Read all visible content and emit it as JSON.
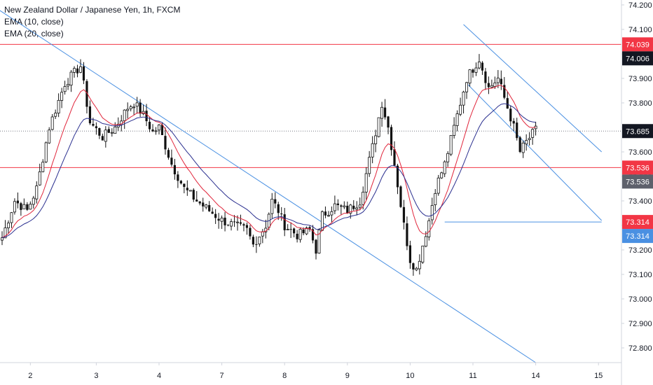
{
  "legend": {
    "title": "New Zealand Dollar / Japanese Yen, 1h, FXCM",
    "ema10": "EMA (10, close)",
    "ema20": "EMA (20, close)"
  },
  "colors": {
    "candle": "#111111",
    "ema10": "#e0243a",
    "ema20": "#2a2f8f",
    "level": "#f23645",
    "trend": "#4a90e2",
    "price": "#787b86",
    "axis": "#d1d4dc",
    "badge_red": "#f23645",
    "badge_black": "#131722",
    "badge_gray": "#5d606b",
    "badge_blue": "#4a90e2"
  },
  "chart_data": {
    "type": "candlestick",
    "title": "New Zealand Dollar / Japanese Yen, 1h, FXCM",
    "x_ticks": [
      "2",
      "3",
      "4",
      "7",
      "8",
      "9",
      "10",
      "11",
      "14",
      "15"
    ],
    "y_ticks": [
      "74.200",
      "74.100",
      "74.000",
      "73.900",
      "73.800",
      "73.700",
      "73.600",
      "73.500",
      "73.400",
      "73.300",
      "73.200",
      "73.100",
      "73.000",
      "72.900",
      "72.800"
    ],
    "ylim": [
      72.76,
      74.21
    ],
    "last_price": 73.685,
    "horizontal_levels": [
      74.039,
      73.536,
      73.314
    ],
    "price_badges": [
      {
        "label": "74.039",
        "value": 74.039,
        "style": "red"
      },
      {
        "label": "74.006",
        "value": 74.006,
        "style": "black"
      },
      {
        "label": "73.685",
        "value": 73.685,
        "style": "black"
      },
      {
        "label": "73.536",
        "value": 73.536,
        "style": "red"
      },
      {
        "label": "73.536",
        "value": 73.536,
        "style": "gray"
      },
      {
        "label": "73.314",
        "value": 73.314,
        "style": "red"
      },
      {
        "label": "73.314",
        "value": 73.314,
        "style": "blue"
      }
    ],
    "close_path": [
      [
        0,
        73.25
      ],
      [
        4,
        73.4
      ],
      [
        8,
        73.36
      ],
      [
        11,
        73.45
      ],
      [
        15,
        73.7
      ],
      [
        20,
        73.88
      ],
      [
        25,
        73.95
      ],
      [
        28,
        73.72
      ],
      [
        32,
        73.66
      ],
      [
        36,
        73.7
      ],
      [
        40,
        73.78
      ],
      [
        42,
        73.8
      ],
      [
        45,
        73.75
      ],
      [
        48,
        73.68
      ],
      [
        50,
        73.7
      ],
      [
        54,
        73.55
      ],
      [
        58,
        73.45
      ],
      [
        62,
        73.4
      ],
      [
        66,
        73.36
      ],
      [
        70,
        73.32
      ],
      [
        74,
        73.3
      ],
      [
        78,
        73.28
      ],
      [
        80,
        73.22
      ],
      [
        84,
        73.3
      ],
      [
        86,
        73.4
      ],
      [
        88,
        73.36
      ],
      [
        90,
        73.3
      ],
      [
        94,
        73.26
      ],
      [
        98,
        73.28
      ],
      [
        100,
        73.2
      ],
      [
        102,
        73.34
      ],
      [
        106,
        73.38
      ],
      [
        110,
        73.36
      ],
      [
        114,
        73.4
      ],
      [
        118,
        73.62
      ],
      [
        121,
        73.8
      ],
      [
        123,
        73.7
      ],
      [
        125,
        73.55
      ],
      [
        128,
        73.3
      ],
      [
        130,
        73.16
      ],
      [
        132,
        73.12
      ],
      [
        134,
        73.22
      ],
      [
        136,
        73.32
      ],
      [
        138,
        73.45
      ],
      [
        141,
        73.55
      ],
      [
        144,
        73.7
      ],
      [
        148,
        73.9
      ],
      [
        152,
        73.98
      ],
      [
        155,
        73.86
      ],
      [
        158,
        73.9
      ],
      [
        160,
        73.82
      ],
      [
        163,
        73.7
      ],
      [
        165,
        73.6
      ],
      [
        167,
        73.64
      ],
      [
        170,
        73.69
      ]
    ],
    "candle_count": 171,
    "wick_amp": 0.035,
    "body_amp": 0.025,
    "trendlines": [
      {
        "from": [
          -7,
          74.23
        ],
        "to": [
          170,
          72.74
        ]
      },
      {
        "from": [
          147,
          74.12
        ],
        "to": [
          191,
          73.6
        ]
      },
      {
        "from": [
          148,
          73.88
        ],
        "to": [
          191,
          73.32
        ]
      },
      {
        "from": [
          141,
          73.314
        ],
        "to": [
          191,
          73.314
        ]
      }
    ],
    "day_starts": [
      9,
      30,
      50,
      70,
      90,
      110,
      130,
      150,
      170,
      190
    ]
  }
}
